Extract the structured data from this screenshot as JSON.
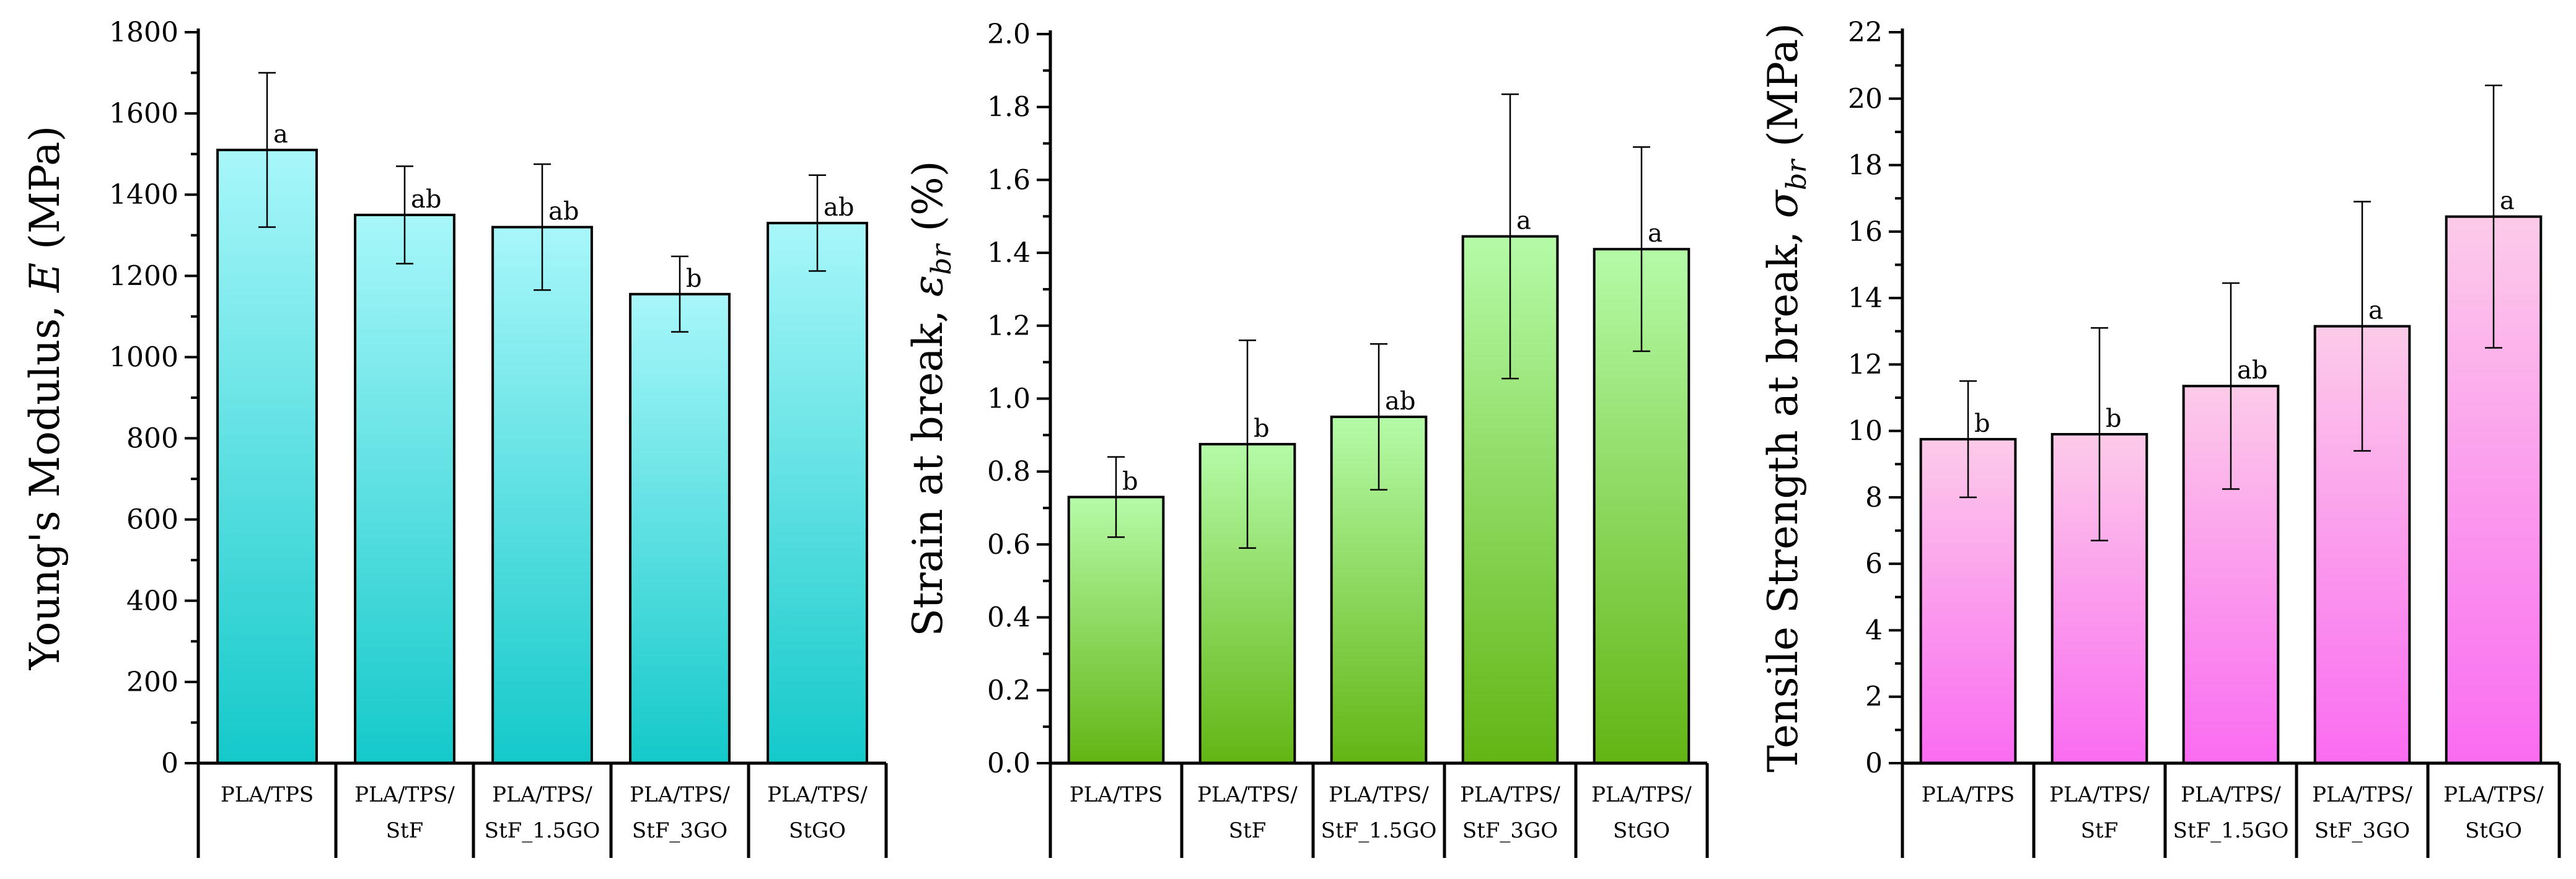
{
  "chart_data": [
    {
      "type": "bar",
      "ylabel_main": "Young's Modulus, ",
      "ylabel_symbol": "E",
      "ylabel_sub": "",
      "ylabel_unit": " (MPa)",
      "ylim": [
        0,
        1800
      ],
      "yticks": [
        "0",
        "200",
        "400",
        "600",
        "800",
        "1000",
        "1200",
        "1400",
        "1600",
        "1800"
      ],
      "categories": [
        [
          "PLA/TPS"
        ],
        [
          "PLA/TPS/",
          "StF"
        ],
        [
          "PLA/TPS/",
          "StF_1.5GO"
        ],
        [
          "PLA/TPS/",
          "StF_3GO"
        ],
        [
          "PLA/TPS/",
          "StGO"
        ]
      ],
      "values": [
        1510,
        1350,
        1320,
        1155,
        1330
      ],
      "errors": [
        190,
        120,
        155,
        93,
        118
      ],
      "letters": [
        "a",
        "ab",
        "ab",
        "b",
        "ab"
      ],
      "colors": {
        "top": "#a8f7fa",
        "bottom": "#14c9ca"
      }
    },
    {
      "type": "bar",
      "ylabel_main": "Strain at break, ",
      "ylabel_symbol": "ε",
      "ylabel_sub": "br",
      "ylabel_unit": " (%)",
      "ylim": [
        0,
        2.0
      ],
      "yticks": [
        "0.0",
        "0.2",
        "0.4",
        "0.6",
        "0.8",
        "1.0",
        "1.2",
        "1.4",
        "1.6",
        "1.8",
        "2.0"
      ],
      "categories": [
        [
          "PLA/TPS"
        ],
        [
          "PLA/TPS/",
          "StF"
        ],
        [
          "PLA/TPS/",
          "StF_1.5GO"
        ],
        [
          "PLA/TPS/",
          "StF_3GO"
        ],
        [
          "PLA/TPS/",
          "StGO"
        ]
      ],
      "values": [
        0.73,
        0.875,
        0.95,
        1.445,
        1.41
      ],
      "errors": [
        0.11,
        0.285,
        0.2,
        0.39,
        0.28
      ],
      "letters": [
        "b",
        "b",
        "ab",
        "a",
        "a"
      ],
      "colors": {
        "top": "#b5fba8",
        "bottom": "#63b514"
      }
    },
    {
      "type": "bar",
      "ylabel_main": "Tensile Strength at break, ",
      "ylabel_symbol": "σ",
      "ylabel_sub": "br",
      "ylabel_unit": " (MPa)",
      "ylim": [
        0,
        22
      ],
      "yticks": [
        "0",
        "2",
        "4",
        "6",
        "8",
        "10",
        "12",
        "14",
        "16",
        "18",
        "20",
        "22"
      ],
      "categories": [
        [
          "PLA/TPS"
        ],
        [
          "PLA/TPS/",
          "StF"
        ],
        [
          "PLA/TPS/",
          "StF_1.5GO"
        ],
        [
          "PLA/TPS/",
          "StF_3GO"
        ],
        [
          "PLA/TPS/",
          "StGO"
        ]
      ],
      "values": [
        9.75,
        9.9,
        11.35,
        13.15,
        16.45
      ],
      "errors": [
        1.75,
        3.2,
        3.1,
        3.75,
        3.95
      ],
      "letters": [
        "b",
        "b",
        "ab",
        "a",
        "a"
      ],
      "colors": {
        "top": "#fccbe9",
        "bottom": "#fa6cf1"
      }
    }
  ]
}
